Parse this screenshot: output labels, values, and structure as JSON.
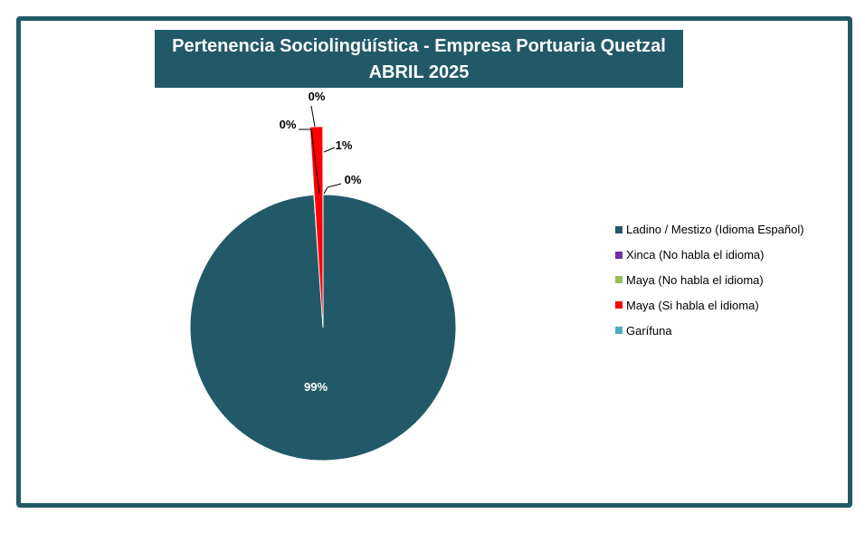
{
  "chart_data": {
    "type": "pie",
    "title": "Pertenencia Sociolingüística - Empresa Portuaria Quetzal",
    "subtitle": "ABRIL 2025",
    "legend_position": "right",
    "slices": [
      {
        "name": "Ladino / Mestizo (Idioma Español)",
        "value": 99,
        "label": "99%",
        "color": "#215968"
      },
      {
        "name": "Xinca (No habla el idioma)",
        "value": 0,
        "label": "0%",
        "color": "#7030a0"
      },
      {
        "name": "Maya  (No habla el idioma)",
        "value": 0,
        "label": "0%",
        "color": "#9bbb59"
      },
      {
        "name": "Maya  (Si habla el idioma)",
        "value": 1,
        "label": "1%",
        "color": "#ff0000"
      },
      {
        "name": "Garífuna",
        "value": 0,
        "label": "0%",
        "color": "#4bacc6"
      }
    ]
  }
}
